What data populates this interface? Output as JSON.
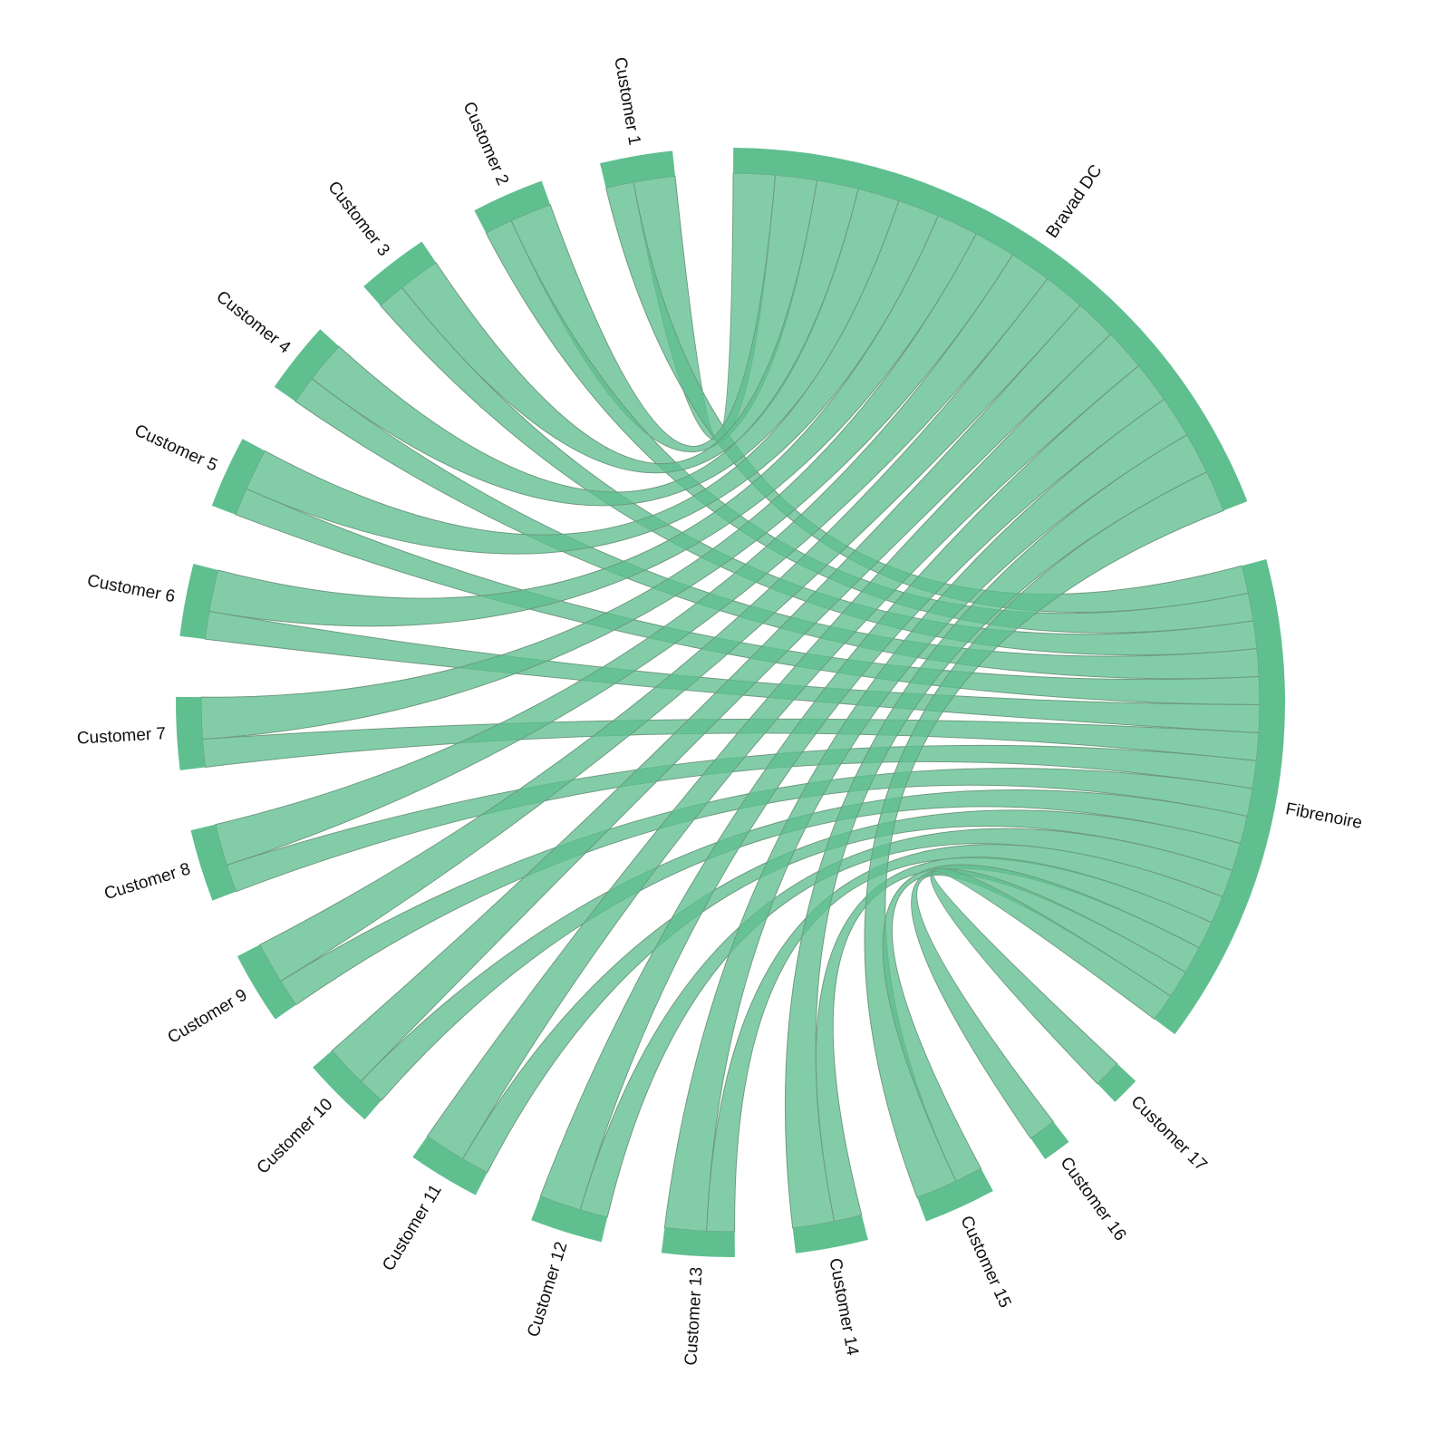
{
  "chart_data": {
    "type": "chord",
    "color": "#5fbf8f",
    "nodes": [
      "Bravad DC",
      "Fibrenoire",
      "Customer 17",
      "Customer 16",
      "Customer 15",
      "Customer 14",
      "Customer 13",
      "Customer 12",
      "Customer 11",
      "Customer 10",
      "Customer 9",
      "Customer 8",
      "Customer 7",
      "Customer 6",
      "Customer 5",
      "Customer 4",
      "Customer 3",
      "Customer 2",
      "Customer 1"
    ],
    "links": [
      {
        "source": "Customer 1",
        "target": "Bravad DC",
        "value": 1.5
      },
      {
        "source": "Customer 1",
        "target": "Fibrenoire",
        "value": 1
      },
      {
        "source": "Customer 2",
        "target": "Bravad DC",
        "value": 1.5
      },
      {
        "source": "Customer 2",
        "target": "Fibrenoire",
        "value": 1
      },
      {
        "source": "Customer 3",
        "target": "Bravad DC",
        "value": 1.5
      },
      {
        "source": "Customer 3",
        "target": "Fibrenoire",
        "value": 1
      },
      {
        "source": "Customer 4",
        "target": "Bravad DC",
        "value": 1.5
      },
      {
        "source": "Customer 4",
        "target": "Fibrenoire",
        "value": 1
      },
      {
        "source": "Customer 5",
        "target": "Bravad DC",
        "value": 1.5
      },
      {
        "source": "Customer 5",
        "target": "Fibrenoire",
        "value": 1
      },
      {
        "source": "Customer 6",
        "target": "Bravad DC",
        "value": 1.5
      },
      {
        "source": "Customer 6",
        "target": "Fibrenoire",
        "value": 1
      },
      {
        "source": "Customer 7",
        "target": "Bravad DC",
        "value": 1.5
      },
      {
        "source": "Customer 7",
        "target": "Fibrenoire",
        "value": 1
      },
      {
        "source": "Customer 8",
        "target": "Bravad DC",
        "value": 1.5
      },
      {
        "source": "Customer 8",
        "target": "Fibrenoire",
        "value": 1
      },
      {
        "source": "Customer 9",
        "target": "Bravad DC",
        "value": 1.5
      },
      {
        "source": "Customer 9",
        "target": "Fibrenoire",
        "value": 1
      },
      {
        "source": "Customer 10",
        "target": "Bravad DC",
        "value": 1.5
      },
      {
        "source": "Customer 10",
        "target": "Fibrenoire",
        "value": 1
      },
      {
        "source": "Customer 11",
        "target": "Bravad DC",
        "value": 1.5
      },
      {
        "source": "Customer 11",
        "target": "Fibrenoire",
        "value": 1
      },
      {
        "source": "Customer 12",
        "target": "Bravad DC",
        "value": 1.5
      },
      {
        "source": "Customer 12",
        "target": "Fibrenoire",
        "value": 1
      },
      {
        "source": "Customer 13",
        "target": "Bravad DC",
        "value": 1.5
      },
      {
        "source": "Customer 13",
        "target": "Fibrenoire",
        "value": 1
      },
      {
        "source": "Customer 14",
        "target": "Bravad DC",
        "value": 1.5
      },
      {
        "source": "Customer 14",
        "target": "Fibrenoire",
        "value": 1
      },
      {
        "source": "Customer 15",
        "target": "Bravad DC",
        "value": 1.5
      },
      {
        "source": "Customer 15",
        "target": "Fibrenoire",
        "value": 1
      },
      {
        "source": "Customer 16",
        "target": "Fibrenoire",
        "value": 1
      },
      {
        "source": "Customer 17",
        "target": "Fibrenoire",
        "value": 1
      }
    ]
  }
}
